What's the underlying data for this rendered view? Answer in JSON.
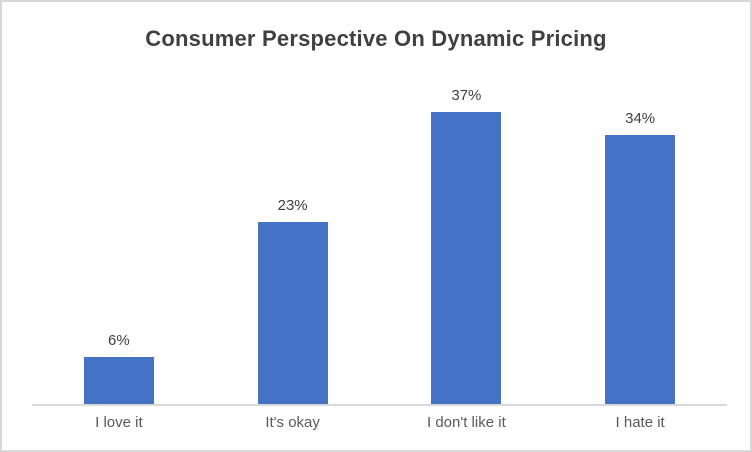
{
  "chart_data": {
    "type": "bar",
    "title": "Consumer Perspective On Dynamic Pricing",
    "categories": [
      "I love it",
      "It's okay",
      "I don't like it",
      "I hate it"
    ],
    "values": [
      6,
      23,
      37,
      34
    ],
    "data_labels": [
      "6%",
      "23%",
      "37%",
      "34%"
    ],
    "xlabel": "",
    "ylabel": "",
    "ylim": [
      0,
      40
    ],
    "grid": false,
    "legend": false,
    "colors": {
      "bar": "#4472c4",
      "axis_line": "#d9d9d9",
      "title_text": "#404040",
      "data_label_text": "#404040",
      "category_label_text": "#595959",
      "frame_border": "#d8d8d8"
    }
  }
}
